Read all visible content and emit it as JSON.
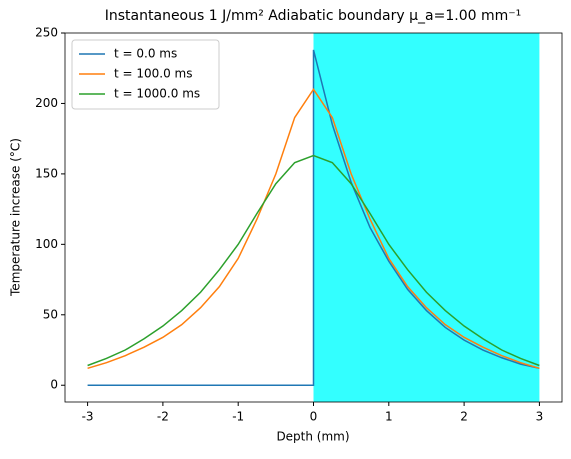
{
  "chart_data": {
    "type": "line",
    "title": "Instantaneous 1 J/mm² Adiabatic boundary μ_a=1.00 mm⁻¹",
    "x_label": "Depth (mm)",
    "y_label": "Temperature increase (°C)",
    "x": [
      -3,
      -2.75,
      -2.5,
      -2.25,
      -2,
      -1.75,
      -1.5,
      -1.25,
      -1,
      -0.75,
      -0.5,
      -0.25,
      0,
      0.25,
      0.5,
      0.75,
      1,
      1.25,
      1.5,
      1.75,
      2,
      2.25,
      2.5,
      2.75,
      3
    ],
    "series": [
      {
        "name": "t = 0.0 ms",
        "color": "#1f77b4",
        "x": [
          -3,
          0,
          0,
          0.25,
          0.5,
          0.75,
          1,
          1.25,
          1.5,
          1.75,
          2,
          2.25,
          2.5,
          2.75,
          3
        ],
        "values": [
          0,
          0,
          238,
          185,
          144,
          112,
          88,
          68,
          53,
          41,
          32,
          25,
          19.5,
          15,
          12
        ]
      },
      {
        "name": "t = 100.0 ms",
        "color": "#ff7f0e",
        "values": [
          12,
          16,
          21,
          27,
          34,
          43,
          55,
          70,
          90,
          118,
          150,
          190,
          210,
          190,
          150,
          118,
          90,
          70,
          55,
          43,
          34,
          27,
          21,
          16,
          12
        ]
      },
      {
        "name": "t = 1000.0 ms",
        "color": "#2ca02c",
        "values": [
          14,
          19,
          25,
          33,
          42,
          53,
          66,
          82,
          100,
          122,
          143,
          158,
          163,
          158,
          143,
          122,
          100,
          82,
          66,
          53,
          42,
          33,
          25,
          19,
          14
        ]
      }
    ],
    "shaded_region": {
      "x": [
        0,
        3
      ],
      "color": "#33ffff"
    },
    "xlim": [
      -3.3,
      3.3
    ],
    "xticks": [
      -3,
      -2,
      -1,
      0,
      1,
      2,
      3
    ],
    "ylim": [
      -11.9,
      250
    ],
    "yticks": [
      0,
      50,
      100,
      150,
      200,
      250
    ],
    "legend": "upper-left"
  }
}
